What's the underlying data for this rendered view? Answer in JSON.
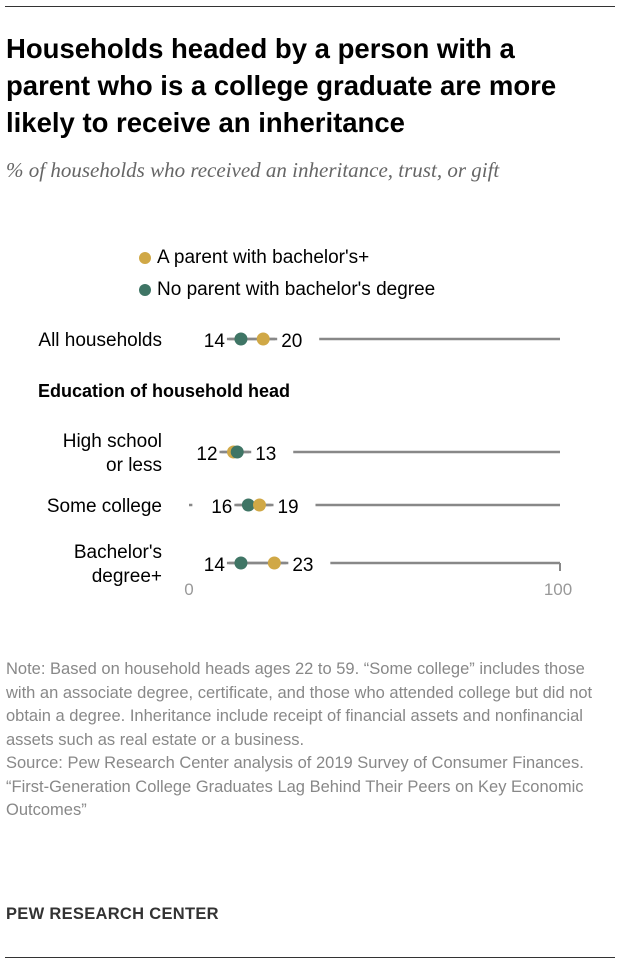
{
  "title": "Households headed by a person with a parent who is a college graduate are more likely to receive an inheritance",
  "subtitle": "% of households who received an inheritance, trust, or gift",
  "colors": {
    "bachelors": "#d0a846",
    "no_bachelors": "#3f7565",
    "axis": "#888888"
  },
  "chart_data": {
    "type": "dot",
    "xlim": [
      0,
      100
    ],
    "xticks": [
      "0",
      "100"
    ],
    "section_label": "Education of household head",
    "legend": [
      "A parent with bachelor's+",
      "No parent with bachelor's degree"
    ],
    "categories": [
      "All households",
      "High school or less",
      "Some college",
      "Bachelor's degree+"
    ],
    "series": [
      {
        "name": "A parent with bachelor's+",
        "values": [
          20,
          12,
          19,
          23
        ]
      },
      {
        "name": "No parent with bachelor's degree",
        "values": [
          14,
          13,
          16,
          14
        ]
      }
    ]
  },
  "note": [
    "Note: Based on household heads ages 22 to 59. “Some college” includes those with an associate degree, certificate, and those who attended college but did not obtain a degree. Inheritance include receipt of financial assets and nonfinancial assets such as real estate or a business.",
    "Source: Pew Research Center analysis of 2019 Survey of Consumer Finances.",
    "“First-Generation College Graduates Lag Behind Their Peers on Key Economic Outcomes”"
  ],
  "brand": "PEW RESEARCH CENTER"
}
